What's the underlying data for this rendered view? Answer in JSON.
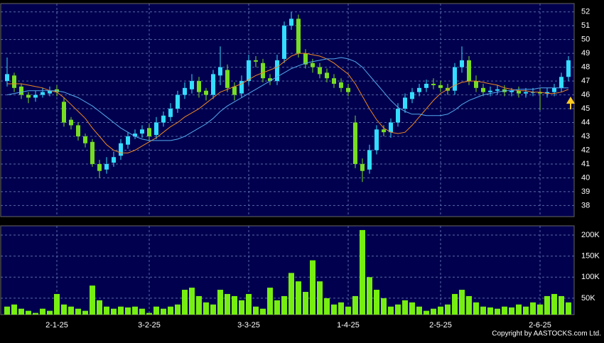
{
  "chart_data": {
    "type": "candlestick",
    "categories": [
      null,
      null,
      null,
      null,
      null,
      null,
      null,
      "2-1-25",
      null,
      null,
      null,
      null,
      null,
      null,
      null,
      null,
      null,
      null,
      null,
      null,
      "3-2-25",
      null,
      null,
      null,
      null,
      null,
      null,
      null,
      null,
      null,
      null,
      null,
      null,
      null,
      "3-3-25",
      null,
      null,
      null,
      null,
      null,
      null,
      null,
      null,
      null,
      null,
      null,
      null,
      null,
      "1-4-25",
      null,
      null,
      null,
      null,
      null,
      null,
      null,
      null,
      null,
      null,
      null,
      null,
      "2-5-25",
      null,
      null,
      null,
      null,
      null,
      null,
      null,
      null,
      null,
      null,
      null,
      null,
      null,
      "2-6-25",
      null,
      null,
      null,
      null
    ],
    "open": [
      47.0,
      47.4,
      46.6,
      46.0,
      45.8,
      46.0,
      46.1,
      46.4,
      45.5,
      44.2,
      43.8,
      43.0,
      42.6,
      41.0,
      40.6,
      41.1,
      41.6,
      42.4,
      43.0,
      43.2,
      43.6,
      43.1,
      44.0,
      44.4,
      45.0,
      46.0,
      46.4,
      47.0,
      46.3,
      46.0,
      47.4,
      47.8,
      46.6,
      46.1,
      47.0,
      48.5,
      48.3,
      47.2,
      47.0,
      48.6,
      51.0,
      51.5,
      49.0,
      48.3,
      48.0,
      47.6,
      47.2,
      46.9,
      46.5,
      44.0,
      41.0,
      40.6,
      42.0,
      43.5,
      43.3,
      44.0,
      45.0,
      45.7,
      46.2,
      46.5,
      46.8,
      46.7,
      46.5,
      46.3,
      48.0,
      48.5,
      47.0,
      46.5,
      46.2,
      46.3,
      46.4,
      46.2,
      46.3,
      46.1,
      46.2,
      46.2,
      46.1,
      46.2,
      46.5,
      47.3
    ],
    "high": [
      48.7,
      47.6,
      46.8,
      46.2,
      46.3,
      46.5,
      46.6,
      46.7,
      45.8,
      44.4,
      44.0,
      43.2,
      42.8,
      41.3,
      41.5,
      41.9,
      42.8,
      43.3,
      43.5,
      43.8,
      43.9,
      44.4,
      44.8,
      45.4,
      46.3,
      46.9,
      47.5,
      47.3,
      46.5,
      47.8,
      49.5,
      48.2,
      46.9,
      47.4,
      48.9,
      48.8,
      48.6,
      47.5,
      48.9,
      51.3,
      52.0,
      51.8,
      49.3,
      48.6,
      48.3,
      47.9,
      47.5,
      47.2,
      46.8,
      44.5,
      41.4,
      42.4,
      43.8,
      43.8,
      44.3,
      45.4,
      46.1,
      46.5,
      46.8,
      47.1,
      47.2,
      47.0,
      46.8,
      48.3,
      49.5,
      48.8,
      47.4,
      46.8,
      46.6,
      46.7,
      46.7,
      46.5,
      46.6,
      46.5,
      46.5,
      46.5,
      46.5,
      46.8,
      47.6,
      48.8
    ],
    "low": [
      46.6,
      46.2,
      45.7,
      45.4,
      45.5,
      45.8,
      45.9,
      45.9,
      43.7,
      43.5,
      42.7,
      42.2,
      40.8,
      40.0,
      40.3,
      40.8,
      41.3,
      42.1,
      42.8,
      42.9,
      42.7,
      42.8,
      43.7,
      44.1,
      44.7,
      45.7,
      46.1,
      45.8,
      45.6,
      45.7,
      46.7,
      46.2,
      45.6,
      45.8,
      46.7,
      48.0,
      46.9,
      46.7,
      46.7,
      48.3,
      50.7,
      48.7,
      47.9,
      47.6,
      47.2,
      46.9,
      46.5,
      46.2,
      45.9,
      40.7,
      39.7,
      40.3,
      41.7,
      43.0,
      42.9,
      43.7,
      44.7,
      45.4,
      45.9,
      46.2,
      46.4,
      46.2,
      46.0,
      46.0,
      47.6,
      46.7,
      46.2,
      45.9,
      45.9,
      46.0,
      45.9,
      45.9,
      45.8,
      45.8,
      45.9,
      44.9,
      45.8,
      45.9,
      46.2,
      47.0
    ],
    "close": [
      47.5,
      46.5,
      46.0,
      45.8,
      46.0,
      46.2,
      46.3,
      46.2,
      44.0,
      43.8,
      43.0,
      42.5,
      41.0,
      40.5,
      41.0,
      41.5,
      42.5,
      43.0,
      43.2,
      43.5,
      43.0,
      44.0,
      44.5,
      45.0,
      46.0,
      46.5,
      47.0,
      46.2,
      46.0,
      47.5,
      48.0,
      46.5,
      46.0,
      47.0,
      48.5,
      48.4,
      47.2,
      47.0,
      48.5,
      51.0,
      51.5,
      49.0,
      48.2,
      48.0,
      47.5,
      47.2,
      46.8,
      46.5,
      46.2,
      41.0,
      40.5,
      42.0,
      43.5,
      43.3,
      44.0,
      45.0,
      45.8,
      46.2,
      46.5,
      46.8,
      46.7,
      46.5,
      46.3,
      48.0,
      48.5,
      47.0,
      46.5,
      46.2,
      46.3,
      46.4,
      46.2,
      46.3,
      46.1,
      46.2,
      46.2,
      46.1,
      46.2,
      46.5,
      47.3,
      48.5
    ],
    "volume": [
      30000,
      35000,
      25000,
      20000,
      15000,
      25000,
      20000,
      60000,
      35000,
      30000,
      25000,
      20000,
      80000,
      45000,
      30000,
      25000,
      30000,
      28000,
      30000,
      25000,
      15000,
      30000,
      25000,
      30000,
      35000,
      70000,
      75000,
      55000,
      40000,
      35000,
      70000,
      60000,
      55000,
      45000,
      60000,
      30000,
      25000,
      75000,
      45000,
      55000,
      110000,
      90000,
      65000,
      140000,
      90000,
      50000,
      35000,
      40000,
      30000,
      55000,
      212000,
      100000,
      70000,
      50000,
      30000,
      35000,
      45000,
      40000,
      30000,
      20000,
      25000,
      30000,
      35000,
      60000,
      70000,
      55000,
      40000,
      30000,
      28000,
      25000,
      30000,
      28000,
      35000,
      30000,
      40000,
      35000,
      55000,
      60000,
      55000,
      40000
    ],
    "up_color": "#33ddff",
    "down_color": "#77dd22",
    "volume_color": "#77ee11",
    "lines": [
      {
        "color": "#ee8822",
        "values": [
          46.8,
          46.8,
          46.8,
          46.7,
          46.6,
          46.5,
          46.3,
          46.2,
          45.8,
          45.3,
          44.8,
          44.3,
          43.6,
          43.0,
          42.4,
          42.0,
          41.8,
          41.8,
          42.0,
          42.3,
          42.6,
          42.9,
          43.3,
          43.7,
          44.0,
          44.4,
          44.7,
          45.0,
          45.4,
          45.8,
          46.2,
          46.4,
          46.6,
          46.8,
          47.1,
          47.4,
          47.6,
          47.8,
          48.0,
          48.4,
          48.8,
          49.0,
          49.0,
          48.9,
          48.8,
          48.6,
          48.3,
          47.9,
          47.5,
          46.8,
          45.9,
          45.0,
          44.2,
          43.6,
          43.3,
          43.2,
          43.3,
          43.8,
          44.4,
          45.0,
          45.6,
          46.1,
          46.4,
          46.7,
          46.9,
          47.0,
          47.0,
          46.9,
          46.8,
          46.7,
          46.5,
          46.4,
          46.3,
          46.3,
          46.2,
          46.2,
          46.1,
          46.1,
          46.2,
          46.4
        ]
      },
      {
        "color": "#55aaee",
        "values": [
          46.0,
          46.1,
          46.2,
          46.3,
          46.3,
          46.3,
          46.3,
          46.3,
          46.2,
          46.0,
          45.8,
          45.5,
          45.2,
          44.8,
          44.4,
          44.0,
          43.6,
          43.3,
          43.0,
          42.8,
          42.7,
          42.7,
          42.7,
          42.7,
          42.8,
          43.0,
          43.3,
          43.6,
          43.9,
          44.3,
          44.8,
          45.2,
          45.5,
          45.8,
          46.1,
          46.4,
          46.7,
          47.0,
          47.3,
          47.6,
          47.9,
          48.1,
          48.3,
          48.4,
          48.5,
          48.6,
          48.6,
          48.7,
          48.6,
          48.4,
          48.0,
          47.4,
          46.8,
          46.2,
          45.6,
          45.1,
          44.8,
          44.6,
          44.6,
          44.5,
          44.5,
          44.5,
          44.6,
          44.9,
          45.3,
          45.6,
          45.8,
          46.0,
          46.1,
          46.2,
          46.3,
          46.3,
          46.4,
          46.4,
          46.4,
          46.5,
          46.5,
          46.5,
          46.5,
          46.5
        ]
      }
    ],
    "ylim": [
      37.2,
      52.6
    ],
    "yticks": [
      38,
      39,
      40,
      41,
      42,
      43,
      44,
      45,
      46,
      47,
      48,
      49,
      50,
      51,
      52
    ],
    "volume_ylim": [
      11000,
      222000
    ],
    "volume_ticks": [
      {
        "value": 50000,
        "label": "50K"
      },
      {
        "value": 100000,
        "label": "100K"
      },
      {
        "value": 150000,
        "label": "150K"
      },
      {
        "value": 200000,
        "label": "200K"
      }
    ],
    "grid": true,
    "copyright": "Copyright by AASTOCKS.com Ltd."
  }
}
